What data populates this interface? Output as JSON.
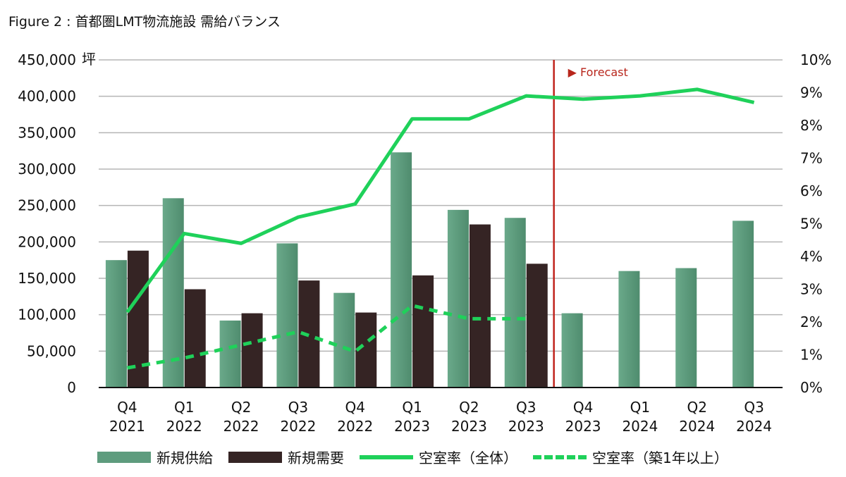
{
  "title": "Figure 2 : 首都圏LMT物流施設 需給バランス",
  "chart_data": {
    "type": "bar",
    "title": "Figure 2 : 首都圏LMT物流施設 需給バランス",
    "ylabel_unit": "坪",
    "ylim": [
      0,
      450000
    ],
    "y2lim": [
      0,
      10
    ],
    "yticks": [
      "0",
      "50,000",
      "100,000",
      "150,000",
      "200,000",
      "250,000",
      "300,000",
      "350,000",
      "400,000",
      "450,000"
    ],
    "y2ticks": [
      "0%",
      "1%",
      "2%",
      "3%",
      "4%",
      "5%",
      "6%",
      "7%",
      "8%",
      "9%",
      "10%"
    ],
    "grid": true,
    "categories": [
      [
        "Q4",
        "2021"
      ],
      [
        "Q1",
        "2022"
      ],
      [
        "Q2",
        "2022"
      ],
      [
        "Q3",
        "2022"
      ],
      [
        "Q4",
        "2022"
      ],
      [
        "Q1",
        "2023"
      ],
      [
        "Q2",
        "2023"
      ],
      [
        "Q3",
        "2023"
      ],
      [
        "Q4",
        "2023"
      ],
      [
        "Q1",
        "2024"
      ],
      [
        "Q2",
        "2024"
      ],
      [
        "Q3",
        "2024"
      ]
    ],
    "forecast_label": "▶ Forecast",
    "forecast_start_index": 8,
    "series": [
      {
        "name": "新規供給",
        "type": "bar",
        "axis": "left",
        "color": "#5e9c7e",
        "values": [
          175000,
          260000,
          92000,
          198000,
          130000,
          323000,
          244000,
          233000,
          102000,
          160000,
          164000,
          229000
        ]
      },
      {
        "name": "新規需要",
        "type": "bar",
        "axis": "left",
        "color": "#352424",
        "values": [
          188000,
          135000,
          102000,
          147000,
          103000,
          154000,
          224000,
          170000,
          null,
          null,
          null,
          null
        ]
      },
      {
        "name": "空室率（全体）",
        "type": "line",
        "axis": "right",
        "color": "#1fd15a",
        "style": "solid",
        "values": [
          2.3,
          4.7,
          4.4,
          5.2,
          5.6,
          8.2,
          8.2,
          8.9,
          8.8,
          8.9,
          9.1,
          8.7
        ]
      },
      {
        "name": "空室率（築1年以上）",
        "type": "line",
        "axis": "right",
        "color": "#1fd15a",
        "style": "dashed",
        "values": [
          0.6,
          0.9,
          1.3,
          1.7,
          1.1,
          2.5,
          2.1,
          2.1,
          null,
          null,
          null,
          null
        ]
      }
    ],
    "legend": "bottom"
  }
}
